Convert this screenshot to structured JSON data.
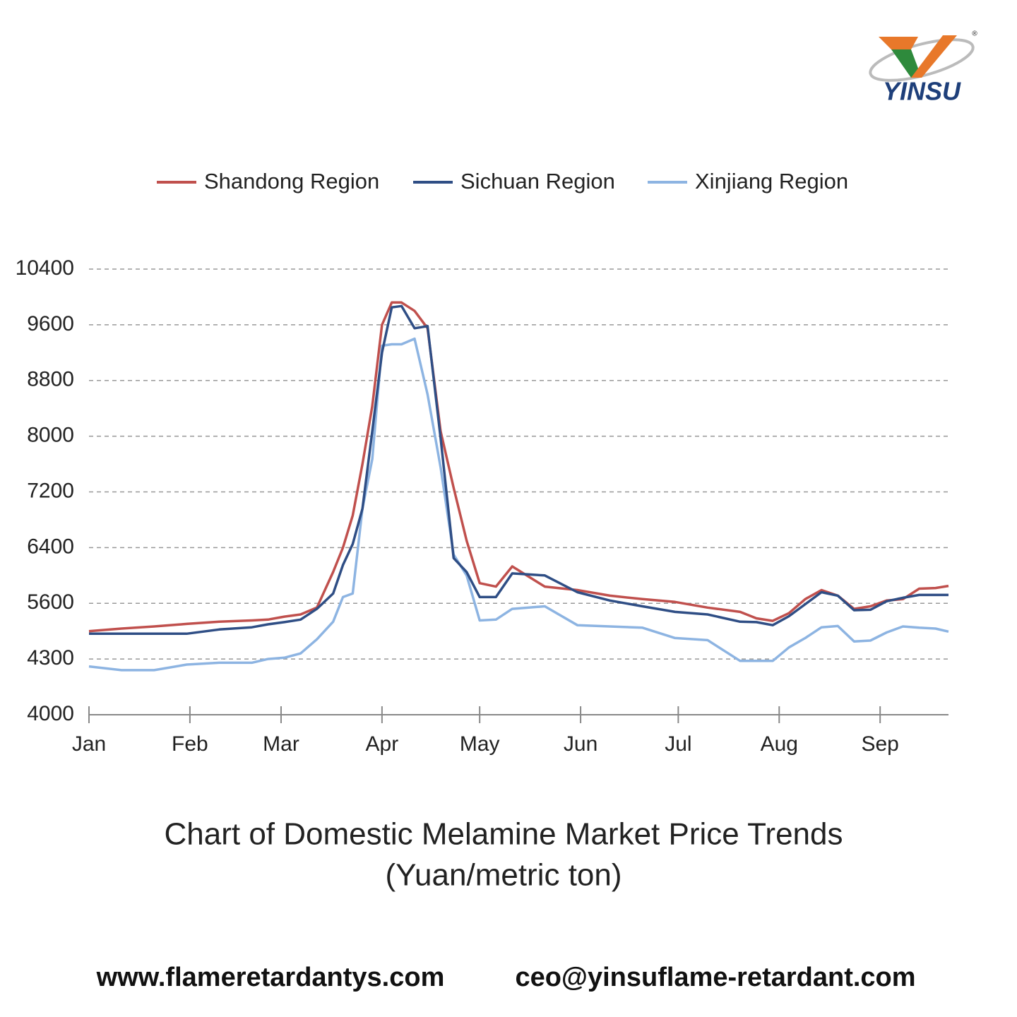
{
  "logo": {
    "text": "YINSU",
    "mark": "®"
  },
  "chart_data": {
    "type": "line",
    "title": "Chart of Domestic Melamine Market Price Trends",
    "subtitle": "(Yuan/metric ton)",
    "x": [
      0,
      10,
      20,
      30,
      40,
      50,
      55,
      60,
      65,
      70,
      75,
      78,
      81,
      84,
      87,
      90,
      93,
      96,
      100,
      104,
      108,
      112,
      116,
      120,
      125,
      130,
      140,
      150,
      160,
      170,
      180,
      190,
      200,
      205,
      210,
      215,
      220,
      225,
      230,
      235,
      240,
      245,
      250,
      255,
      260,
      264
    ],
    "xlim": [
      0,
      264
    ],
    "xticks": [
      {
        "value": 0,
        "label": "Jan"
      },
      {
        "value": 31,
        "label": "Feb"
      },
      {
        "value": 59,
        "label": "Mar"
      },
      {
        "value": 90,
        "label": "Apr"
      },
      {
        "value": 120,
        "label": "May"
      },
      {
        "value": 151,
        "label": "Jun"
      },
      {
        "value": 181,
        "label": "Jul"
      },
      {
        "value": 212,
        "label": "Aug"
      },
      {
        "value": 243,
        "label": "Sep"
      }
    ],
    "ylim": [
      4000,
      10400
    ],
    "yticks": [
      4000,
      4300,
      5600,
      6400,
      7200,
      8000,
      8800,
      9600,
      10400
    ],
    "grid": true,
    "legend": "top",
    "series": [
      {
        "name": "Shandong Region",
        "color": "#c0504d",
        "values": [
          4950,
          5010,
          5060,
          5120,
          5170,
          5200,
          5220,
          5290,
          5340,
          5500,
          6050,
          6400,
          6860,
          7600,
          8430,
          9600,
          9920,
          9920,
          9800,
          9550,
          8070,
          7260,
          6500,
          5890,
          5840,
          6130,
          5840,
          5790,
          5710,
          5660,
          5620,
          5500,
          5400,
          5250,
          5190,
          5370,
          5660,
          5790,
          5710,
          5470,
          5530,
          5640,
          5660,
          5810,
          5820,
          5850
        ]
      },
      {
        "name": "Sichuan Region",
        "color": "#2f4e85",
        "values": [
          4890,
          4890,
          4890,
          4890,
          4990,
          5040,
          5110,
          5160,
          5220,
          5470,
          5740,
          6150,
          6450,
          6960,
          8070,
          9200,
          9850,
          9870,
          9550,
          9580,
          7970,
          6250,
          6050,
          5690,
          5690,
          6030,
          6000,
          5760,
          5640,
          5530,
          5400,
          5340,
          5170,
          5160,
          5090,
          5300,
          5580,
          5760,
          5710,
          5440,
          5450,
          5630,
          5680,
          5720,
          5720,
          5720
        ]
      },
      {
        "name": "Xinjiang Region",
        "color": "#8db4e2",
        "values": [
          4260,
          4240,
          4240,
          4270,
          4280,
          4280,
          4300,
          4330,
          4430,
          4760,
          5170,
          5690,
          5740,
          6960,
          7670,
          9300,
          9320,
          9320,
          9400,
          8600,
          7550,
          6300,
          6000,
          5200,
          5220,
          5470,
          5530,
          5090,
          5060,
          5030,
          4790,
          4740,
          4290,
          4290,
          4290,
          4570,
          4790,
          5040,
          5070,
          4710,
          4730,
          4920,
          5060,
          5030,
          5010,
          4940
        ]
      }
    ]
  },
  "footer": [
    "www.flameretardantys.com",
    "ceo@yinsuflame-retardant.com"
  ]
}
